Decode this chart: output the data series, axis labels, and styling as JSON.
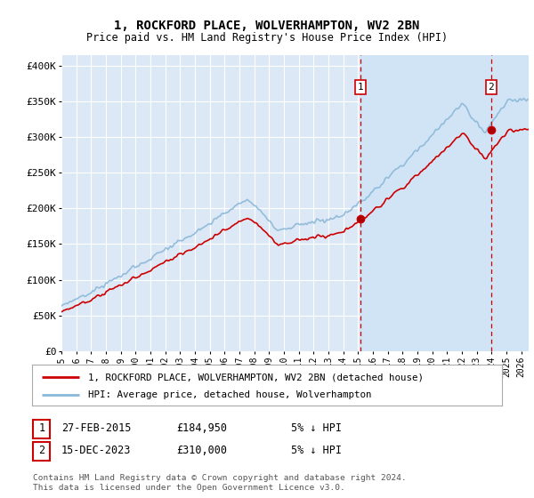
{
  "title": "1, ROCKFORD PLACE, WOLVERHAMPTON, WV2 2BN",
  "subtitle": "Price paid vs. HM Land Registry's House Price Index (HPI)",
  "ylabel_ticks": [
    "£0",
    "£50K",
    "£100K",
    "£150K",
    "£200K",
    "£250K",
    "£300K",
    "£350K",
    "£400K"
  ],
  "ytick_values": [
    0,
    50000,
    100000,
    150000,
    200000,
    250000,
    300000,
    350000,
    400000
  ],
  "ylim": [
    0,
    415000
  ],
  "xlim_start": 1995.0,
  "xlim_end": 2026.5,
  "xtick_years": [
    1995,
    1996,
    1997,
    1998,
    1999,
    2000,
    2001,
    2002,
    2003,
    2004,
    2005,
    2006,
    2007,
    2008,
    2009,
    2010,
    2011,
    2012,
    2013,
    2014,
    2015,
    2016,
    2017,
    2018,
    2019,
    2020,
    2021,
    2022,
    2023,
    2024,
    2025,
    2026
  ],
  "hpi_line_color": "#8ab8d8",
  "price_line_color": "#cc0000",
  "marker1_x": 2015.15,
  "marker1_y": 184950,
  "marker1_label": "1",
  "marker1_date": "27-FEB-2015",
  "marker1_price": "£184,950",
  "marker1_hpi": "5% ↓ HPI",
  "marker2_x": 2023.96,
  "marker2_y": 310000,
  "marker2_label": "2",
  "marker2_date": "15-DEC-2023",
  "marker2_price": "£310,000",
  "marker2_hpi": "5% ↓ HPI",
  "legend_line1": "1, ROCKFORD PLACE, WOLVERHAMPTON, WV2 2BN (detached house)",
  "legend_line2": "HPI: Average price, detached house, Wolverhampton",
  "footer": "Contains HM Land Registry data © Crown copyright and database right 2024.\nThis data is licensed under the Open Government Licence v3.0.",
  "bg_color": "#ffffff",
  "plot_bg_color": "#dce8f5",
  "grid_color": "#ffffff",
  "shaded_region_color": "#c8dcf0"
}
